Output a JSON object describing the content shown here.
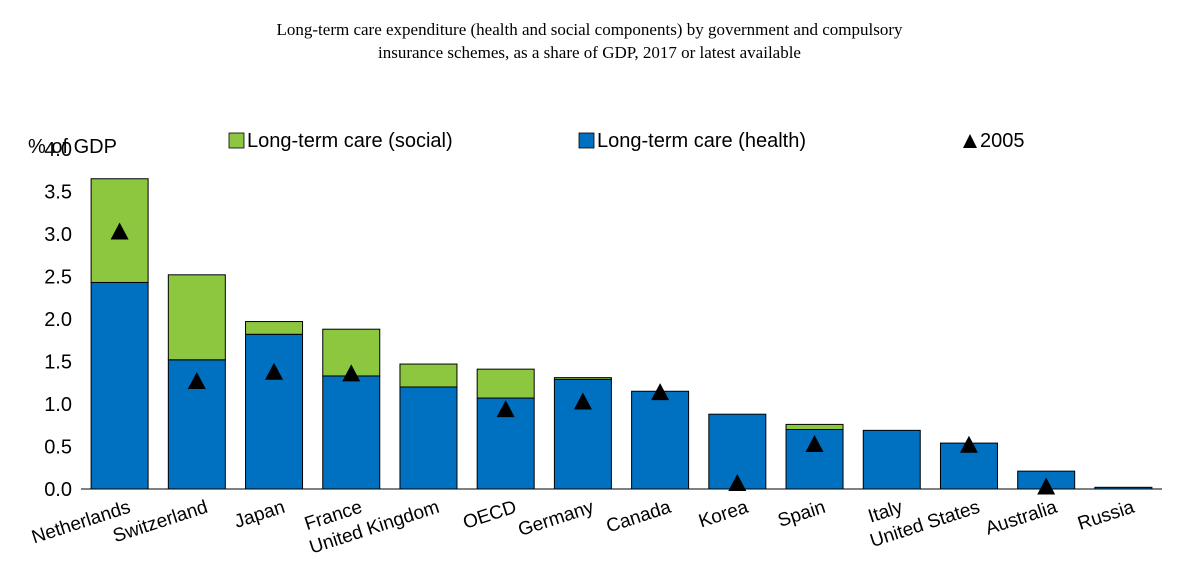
{
  "chart_data": {
    "type": "bar",
    "title_line1": "Long-term care expenditure (health and social components) by government and compulsory",
    "title_line2": "insurance schemes, as a share of GDP, 2017 or latest available",
    "ylabel": "% of GDP",
    "ylim": [
      0,
      4.0
    ],
    "yticks": [
      "0.0",
      "0.5",
      "1.0",
      "1.5",
      "2.0",
      "2.5",
      "3.0",
      "3.5",
      "4.0"
    ],
    "stacked": true,
    "grid": false,
    "legend_position": "top",
    "categories": [
      "Netherlands",
      "Switzerland",
      "Japan",
      "France",
      "United Kingdom",
      "OECD",
      "Germany",
      "Canada",
      "Korea",
      "Spain",
      "Italy",
      "United States",
      "Australia",
      "Russia"
    ],
    "series": [
      {
        "name": "Long-term care (health)",
        "color": "#0070C0",
        "values": [
          2.43,
          1.52,
          1.82,
          1.33,
          1.2,
          1.07,
          1.29,
          1.15,
          0.88,
          0.7,
          0.69,
          0.54,
          0.21,
          0.02
        ]
      },
      {
        "name": "Long-term care (social)",
        "color": "#8DC63F",
        "values": [
          1.22,
          1.0,
          0.15,
          0.55,
          0.27,
          0.34,
          0.02,
          0.0,
          0.0,
          0.06,
          0.0,
          0.0,
          0.0,
          0.0
        ]
      }
    ],
    "markers": {
      "name": "2005",
      "symbol": "triangle",
      "color": "#000000",
      "values": [
        3.03,
        1.27,
        1.38,
        1.36,
        null,
        0.94,
        1.03,
        1.14,
        0.07,
        0.53,
        null,
        0.52,
        0.03,
        null
      ]
    }
  }
}
